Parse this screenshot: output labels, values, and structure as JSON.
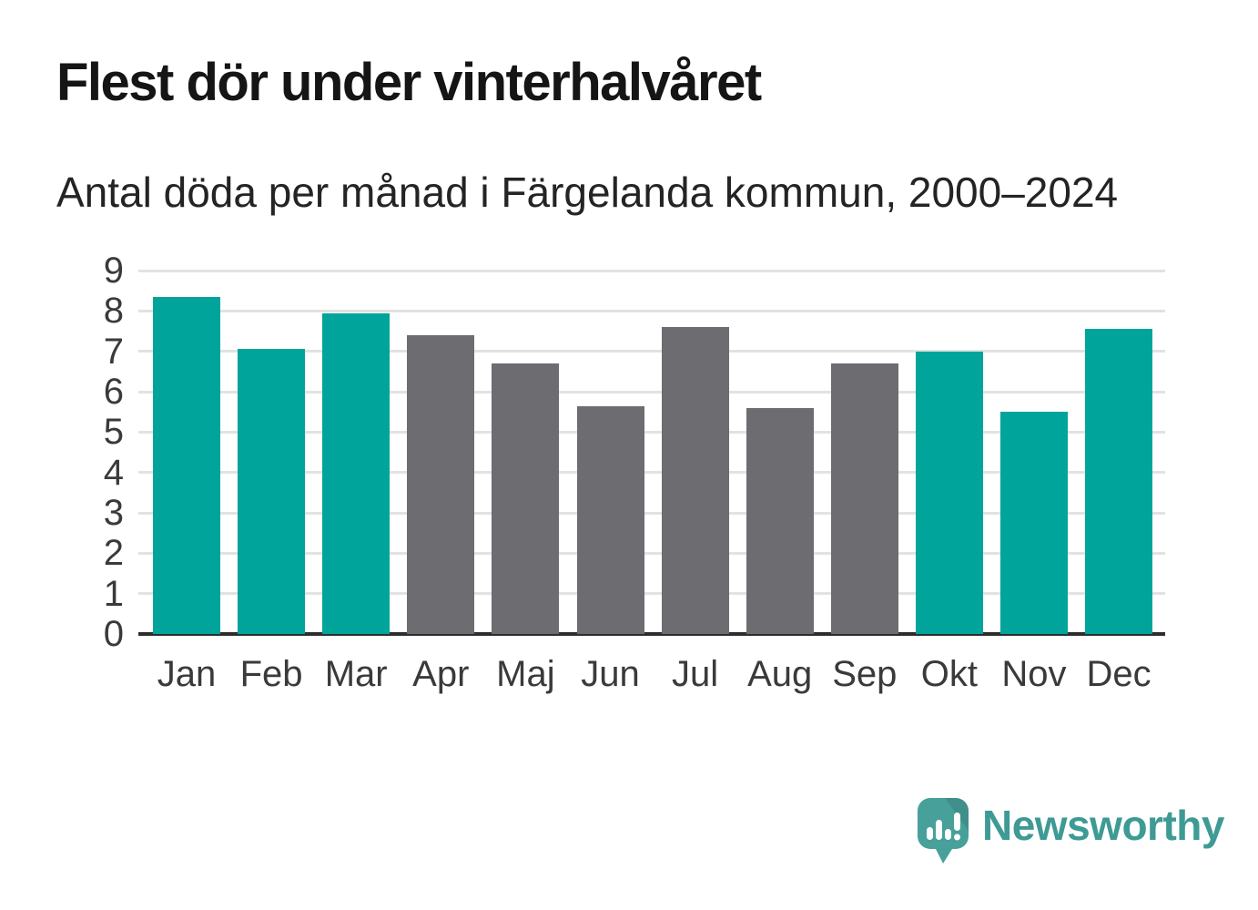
{
  "title": "Flest dör under vinterhalvåret",
  "subtitle": "Antal döda per månad i Färgelanda kommun, 2000–2024",
  "logo": {
    "text": "Newsworthy",
    "icon": "newsworthy-speech-bubble-bar-chart-icon"
  },
  "colors": {
    "winter_bar_teal": "#00a49b",
    "summer_bar_gray": "#6c6c71",
    "gridline": "#e2e2e2",
    "axis_line": "#2d2d2d",
    "title_text": "#151515",
    "subtitle_text": "#242424",
    "axis_text": "#3a3a3a",
    "logo_teal": "#3e9a95",
    "logo_bubble": "#47a09a"
  },
  "chart_data": {
    "type": "bar",
    "title": "Flest dör under vinterhalvåret",
    "subtitle": "Antal döda per månad i Färgelanda kommun, 2000–2024",
    "categories": [
      "Jan",
      "Feb",
      "Mar",
      "Apr",
      "Maj",
      "Jun",
      "Jul",
      "Aug",
      "Sep",
      "Okt",
      "Nov",
      "Dec"
    ],
    "values": [
      8.35,
      7.05,
      7.95,
      7.4,
      6.7,
      5.65,
      7.6,
      5.6,
      6.7,
      7.0,
      5.5,
      7.55
    ],
    "highlighted": [
      true,
      true,
      true,
      false,
      false,
      false,
      false,
      false,
      false,
      true,
      true,
      true
    ],
    "highlight_color": "#00a49b",
    "base_color": "#6c6c71",
    "yticks": [
      0,
      1,
      2,
      3,
      4,
      5,
      6,
      7,
      8,
      9
    ],
    "ylim": [
      0,
      9
    ],
    "xlabel": "",
    "ylabel": "",
    "grid": "horizontal",
    "legend": "none"
  }
}
